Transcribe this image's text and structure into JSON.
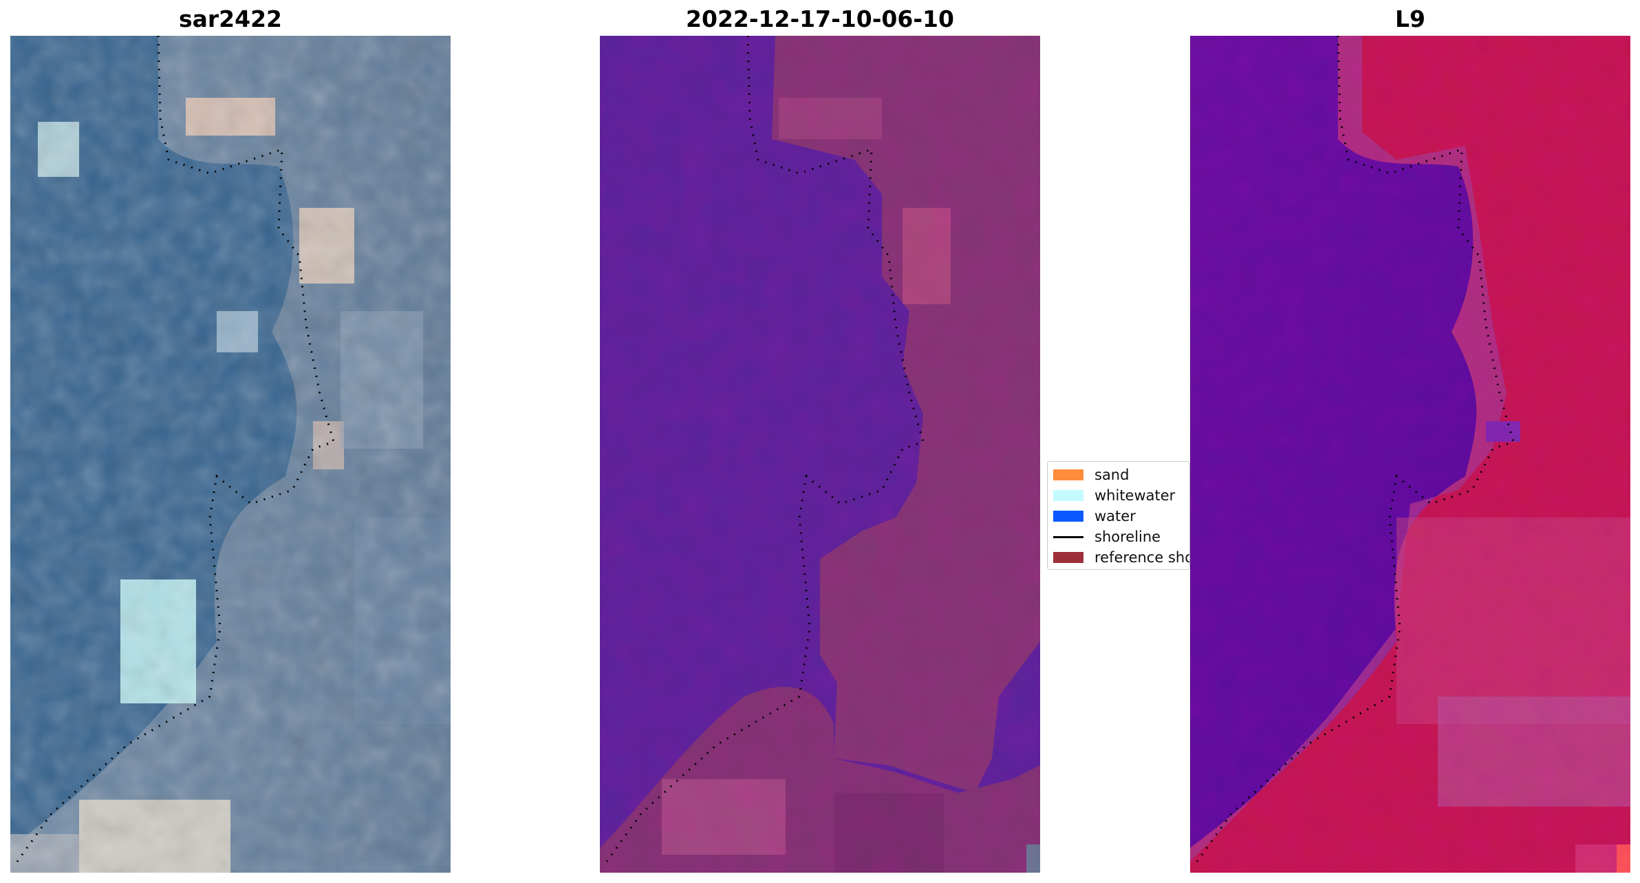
{
  "panels": [
    {
      "title": "sar2422"
    },
    {
      "title": "2022-12-17-10-06-10"
    },
    {
      "title": "L9"
    }
  ],
  "legend": {
    "items": [
      {
        "label": "sand",
        "kind": "patch",
        "color": "#ff8c3a"
      },
      {
        "label": "whitewater",
        "kind": "patch",
        "color": "#c4fbff"
      },
      {
        "label": "water",
        "kind": "patch",
        "color": "#0a5aff"
      },
      {
        "label": "shoreline",
        "kind": "line",
        "color": "#000000"
      },
      {
        "label": "reference sho",
        "kind": "patch",
        "color": "#9e2f3a"
      }
    ]
  }
}
